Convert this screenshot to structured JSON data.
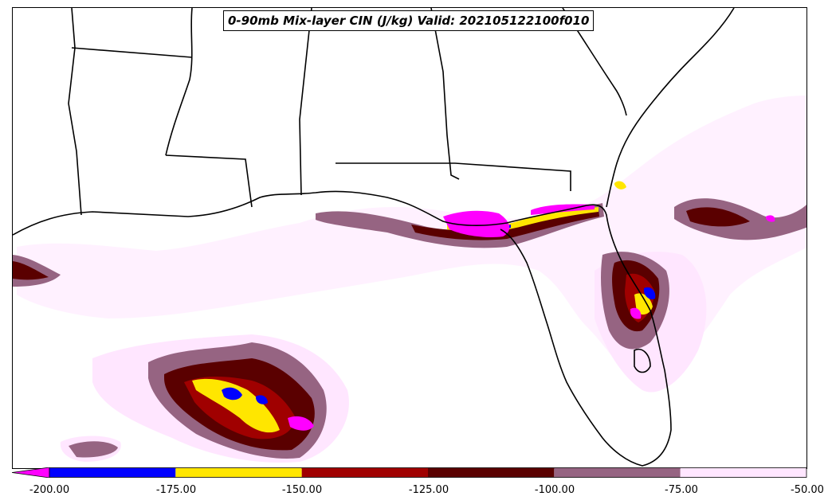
{
  "title": "0-90mb Mix-layer CIN (J/kg) Valid: 202105122100f010",
  "colors": {
    "below_min": "#ff00ff",
    "lt_-175": "#0000ff",
    "lt_-150": "#ffe600",
    "lt_-125": "#a00000",
    "lt_-100": "#5a0000",
    "lt_-75": "#966482",
    "lt_-50": "#ffe6ff",
    "border": "#000000"
  },
  "colorbar": {
    "ticks": [
      "-200.00",
      "-175.00",
      "-150.00",
      "-125.00",
      "-100.00",
      "-75.00",
      "-50.00"
    ],
    "segments": [
      {
        "from": -200,
        "to": -175,
        "color": "#0000ff"
      },
      {
        "from": -175,
        "to": -150,
        "color": "#ffe600"
      },
      {
        "from": -150,
        "to": -125,
        "color": "#a00000"
      },
      {
        "from": -125,
        "to": -100,
        "color": "#5a0000"
      },
      {
        "from": -100,
        "to": -75,
        "color": "#966482"
      },
      {
        "from": -75,
        "to": -50,
        "color": "#ffe6ff"
      }
    ],
    "extend": "min"
  }
}
